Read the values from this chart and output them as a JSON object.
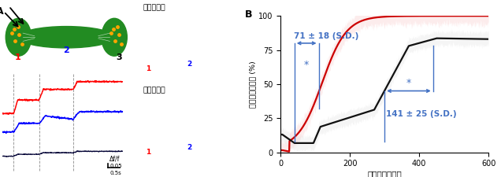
{
  "title_A": "A",
  "title_B": "B",
  "ylabel_B": "蛍光強度変化率 (%)",
  "xlabel_B": "時間（ミリ秒）",
  "xlim_B": [
    0,
    600
  ],
  "ylim_B": [
    0,
    100
  ],
  "yticks_B": [
    0,
    25,
    50,
    75,
    100
  ],
  "xticks_B": [
    0,
    200,
    400,
    600
  ],
  "annotation1_text": "71 ± 18 (S.D.)",
  "annotation2_text": "141 ± 25 (S.D.)",
  "blue_color": "#4472C4",
  "red_color": "#cc0000",
  "black_color": "#111111",
  "light_red": "#f5aaaa",
  "light_gray": "#cccccc",
  "bg_color": "#ffffff",
  "label_denshi_mae": "電気刺激前",
  "label_denshi_go": "電気刺激後",
  "label_df": "Δf/f",
  "label_scale1": "0.05",
  "label_scale2": "0.5s",
  "neuron_green": "#228B22",
  "neuron_orange": "#FFA500"
}
